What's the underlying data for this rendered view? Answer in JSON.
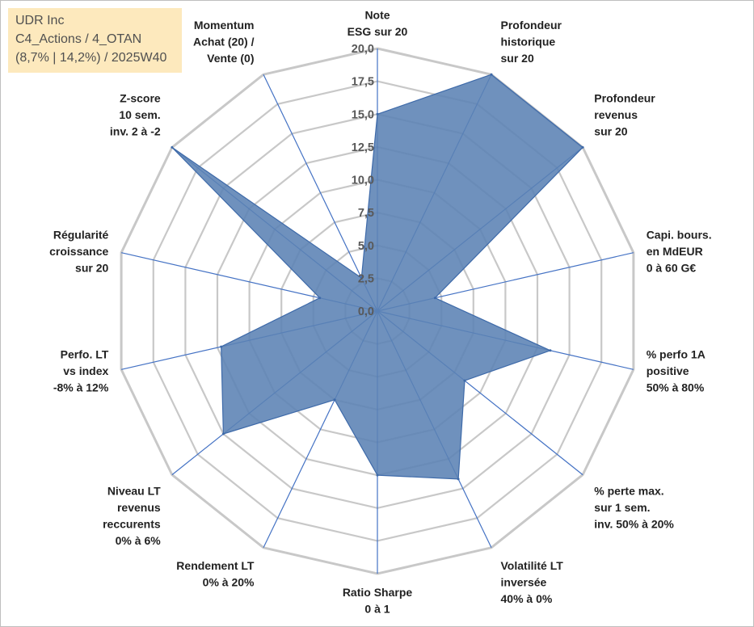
{
  "info_box": {
    "line1": "UDR Inc",
    "line2": "C4_Actions / 4_OTAN",
    "line3": "(8,7% | 14,2%) / 2025W40"
  },
  "colors": {
    "fill": "#5b82b4",
    "stroke": "#3e6aa9",
    "grid": "#c8c8c8",
    "spoke": "#4472c4"
  },
  "chart_data": {
    "type": "radar",
    "title": "",
    "rmax": 20,
    "ticks": [
      "0,0",
      "2,5",
      "5,0",
      "7,5",
      "10,0",
      "12,5",
      "15,0",
      "17,5",
      "20,0"
    ],
    "categories": [
      "Note ESG sur 20",
      "Profondeur historique sur 20",
      "Profondeur revenus sur 20",
      "Capi. bours. en MdEUR 0 à 60 G€",
      "% perfo 1A positive 50% à 80%",
      "% perte max. sur 1 sem. inv. 50% à 20%",
      "Volatilité LT inversée 40% à 0%",
      "Ratio Sharpe 0 à 1",
      "Rendement LT 0% à 20%",
      "Niveau LT revenus reccurents 0% à 6%",
      "Perfo. LT vs index -8% à 12%",
      "Régularité croissance sur 20",
      "Z-score 10 sem. inv. 2 à -2",
      "Momentum Achat (20) / Vente (0)"
    ],
    "axis_labels": [
      [
        "Note",
        "ESG sur 20"
      ],
      [
        "Profondeur",
        "historique",
        "sur 20"
      ],
      [
        "Profondeur",
        "revenus",
        "sur 20"
      ],
      [
        "Capi. bours.",
        "en MdEUR",
        "0 à 60 G€"
      ],
      [
        "% perfo 1A",
        "positive",
        "50% à 80%"
      ],
      [
        "% perte max.",
        "sur 1 sem.",
        "inv. 50% à 20%"
      ],
      [
        "Volatilité LT",
        "inversée",
        "40% à 0%"
      ],
      [
        "Ratio Sharpe",
        "0 à 1"
      ],
      [
        "Rendement LT",
        "0% à 20%"
      ],
      [
        "Niveau LT",
        "revenus",
        "reccurents",
        "0% à 6%"
      ],
      [
        "Perfo. LT",
        "vs index",
        "-8% à 12%"
      ],
      [
        "Régularité",
        "croissance",
        "sur 20"
      ],
      [
        "Z-score",
        "10 sem.",
        "inv. 2 à -2"
      ],
      [
        "Momentum",
        "Achat (20) /",
        "Vente (0)"
      ]
    ],
    "series": [
      {
        "name": "UDR Inc",
        "values": [
          15.0,
          20.0,
          20.0,
          4.5,
          13.5,
          8.5,
          14.2,
          12.5,
          7.5,
          15.0,
          12.2,
          4.5,
          20.0,
          2.8
        ]
      }
    ]
  }
}
